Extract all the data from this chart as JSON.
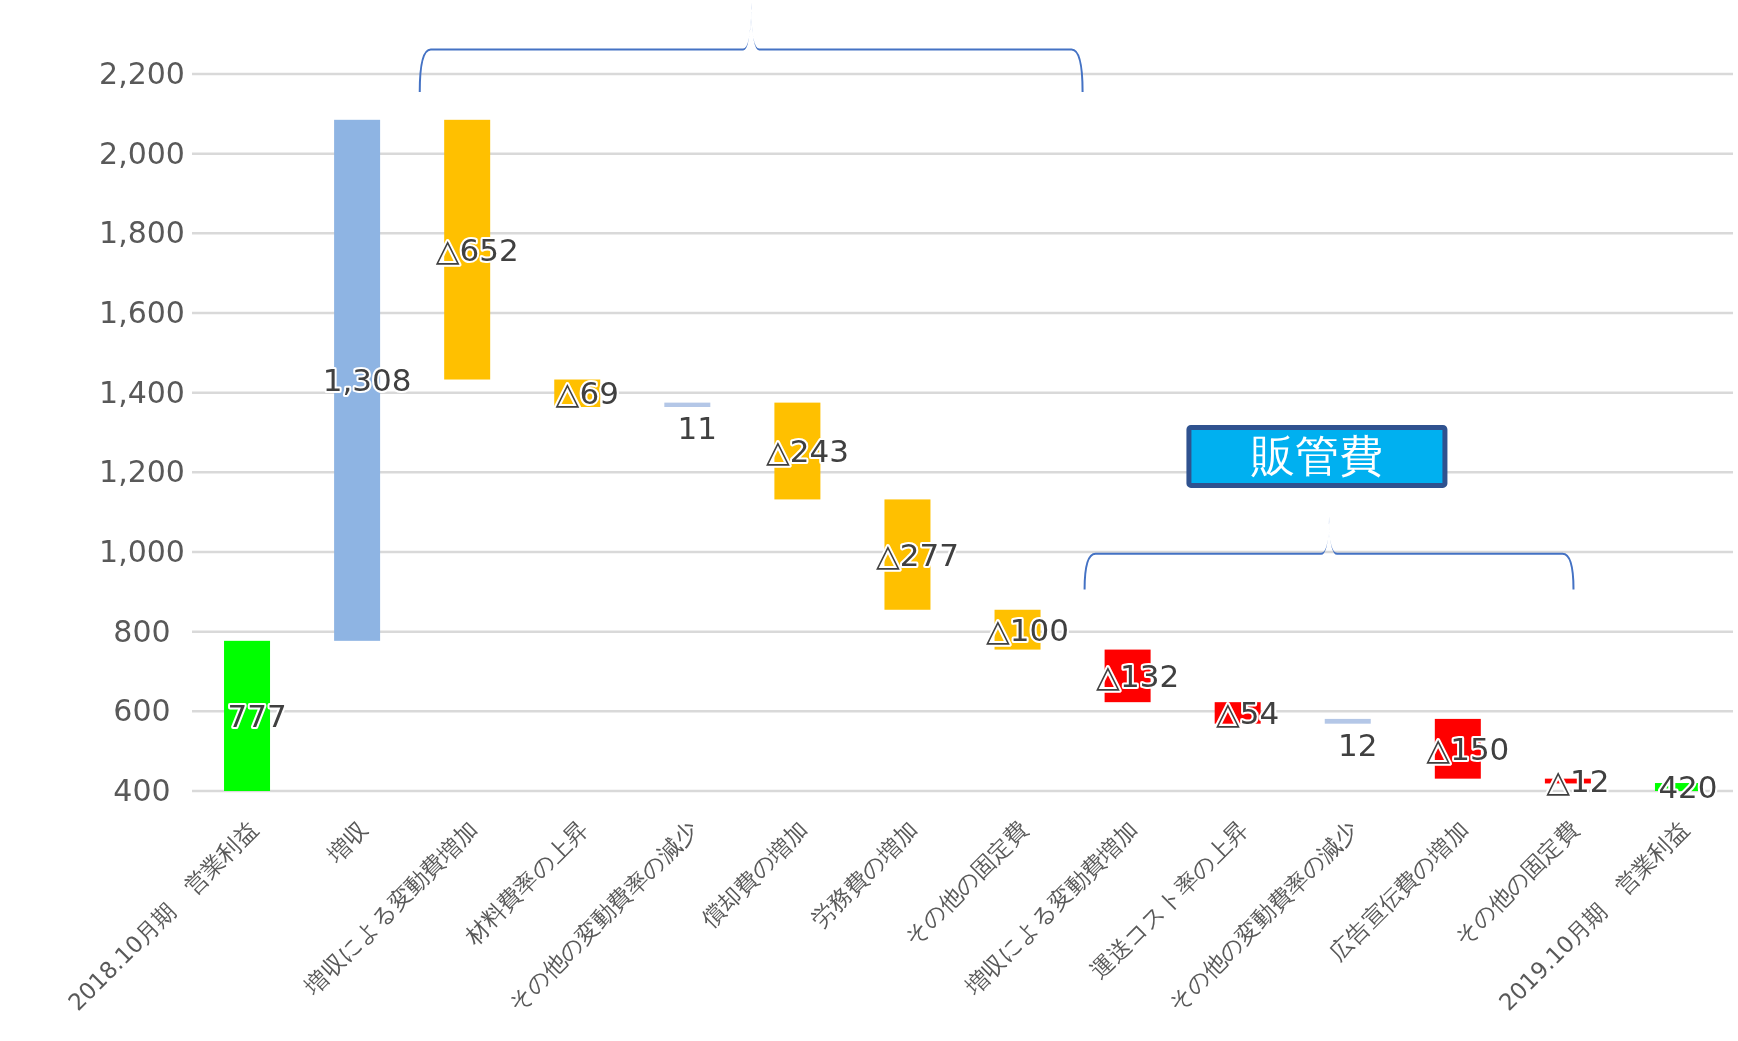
{
  "chart_data": {
    "type": "bar",
    "categories": [
      "2018.10月期　営業利益",
      "増収",
      "増収による変動費増加",
      "材料費率の上昇",
      "その他の変動費率の減少",
      "償却費の増加",
      "労務費の増加",
      "その他の固定費",
      "増収による変動費増加",
      "運送コスト率の上昇",
      "その他の変動費率の減少",
      "広告宣伝費の増加",
      "その他の固定費",
      "2019.10月期　営業利益"
    ],
    "base": [
      400,
      777,
      1433,
      1364,
      1364,
      1132,
      855,
      755,
      623,
      569,
      569,
      431,
      419,
      400
    ],
    "values": [
      377,
      1308,
      652,
      69,
      11,
      243,
      277,
      100,
      132,
      54,
      12,
      150,
      12,
      20
    ],
    "colors": [
      "#00ff00",
      "#8eb4e3",
      "#ffc000",
      "#ffc000",
      "#b4c7e7",
      "#ffc000",
      "#ffc000",
      "#ffc000",
      "#ff0000",
      "#ff0000",
      "#b4c7e7",
      "#ff0000",
      "#ff0000",
      "#00ff00"
    ],
    "value_labels": [
      "777",
      "1,308",
      "△652",
      "△69",
      "11",
      "△243",
      "△277",
      "△100",
      "△132",
      "△54",
      "12",
      "△150",
      "△12",
      "420"
    ],
    "ylim": [
      400,
      2200
    ],
    "yticks": [
      {
        "value": 400,
        "label": "400"
      },
      {
        "value": 600,
        "label": "600"
      },
      {
        "value": 800,
        "label": "800"
      },
      {
        "value": 1000,
        "label": "1,000"
      },
      {
        "value": 1200,
        "label": "1,200"
      },
      {
        "value": 1400,
        "label": "1,400"
      },
      {
        "value": 1600,
        "label": "1,600"
      },
      {
        "value": 1800,
        "label": "1,800"
      },
      {
        "value": 2000,
        "label": "2,000"
      },
      {
        "value": 2200,
        "label": "2,200"
      }
    ],
    "grid": "y",
    "annotations": [
      "販管費"
    ]
  }
}
